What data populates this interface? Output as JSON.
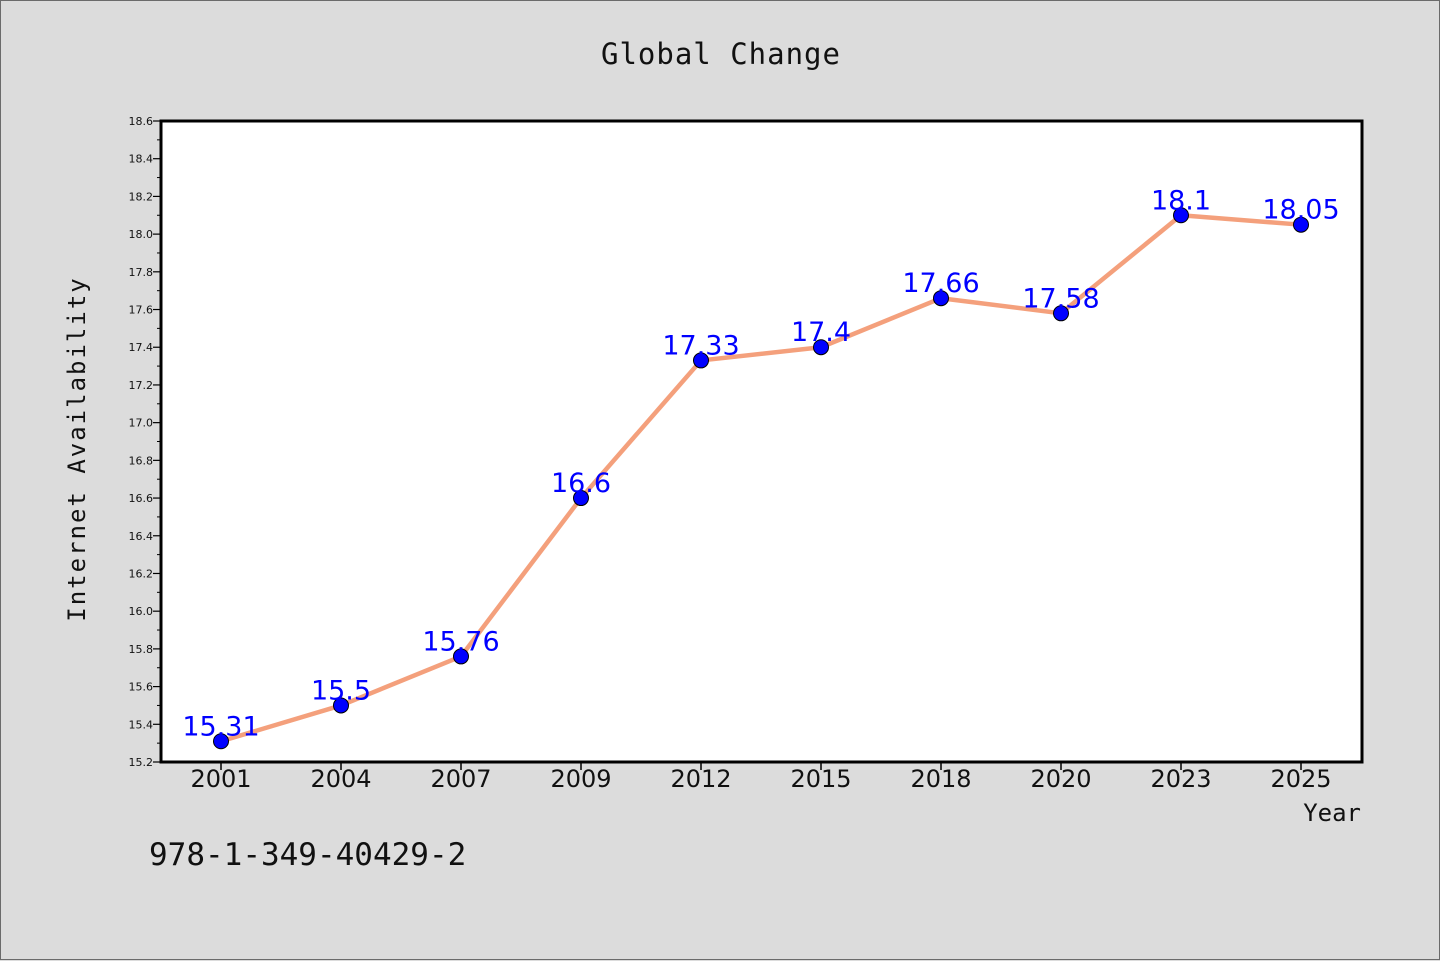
{
  "chart_data": {
    "type": "line",
    "title": "Global Change",
    "xlabel": "Year",
    "ylabel": "Internet Availability",
    "categories": [
      "2001",
      "2004",
      "2007",
      "2009",
      "2012",
      "2015",
      "2018",
      "2020",
      "2023",
      "2025"
    ],
    "series": [
      {
        "values": [
          15.31,
          15.5,
          15.76,
          16.6,
          17.33,
          17.4,
          17.66,
          17.58,
          18.1,
          18.05
        ],
        "labels": [
          "15.31",
          "15.5",
          "15.76",
          "16.6",
          "17.33",
          "17.4",
          "17.66",
          "17.58",
          "18.1",
          "18.05"
        ],
        "line_color": "#f4a07c",
        "marker_color": "#0000ff"
      }
    ],
    "ylim": [
      15.2,
      18.6
    ],
    "yticks": [
      "15.2",
      "15.4",
      "15.6",
      "15.8",
      "16.0",
      "16.2",
      "16.4",
      "16.6",
      "16.8",
      "17.0",
      "17.2",
      "17.4",
      "17.6",
      "17.8",
      "18.0",
      "18.2",
      "18.4",
      "18.6"
    ],
    "grid": false,
    "legend": "none"
  },
  "footnote": "978-1-349-40429-2",
  "colors": {
    "background": "#dcdcdc",
    "plot_background": "#ffffff",
    "line": "#f4a07c",
    "marker": "#0000ff",
    "data_label": "#0000ff"
  }
}
